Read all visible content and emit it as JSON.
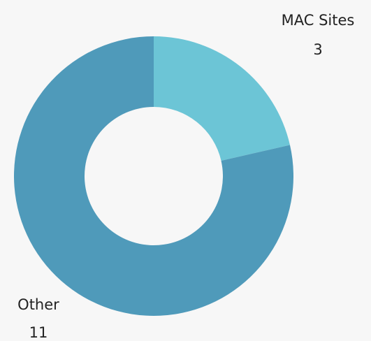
{
  "chart_data": {
    "type": "donut",
    "categories": [
      "MAC Sites",
      "Other"
    ],
    "values": [
      3,
      11
    ],
    "colors": [
      "#6cc5d6",
      "#4f9aba"
    ]
  }
}
